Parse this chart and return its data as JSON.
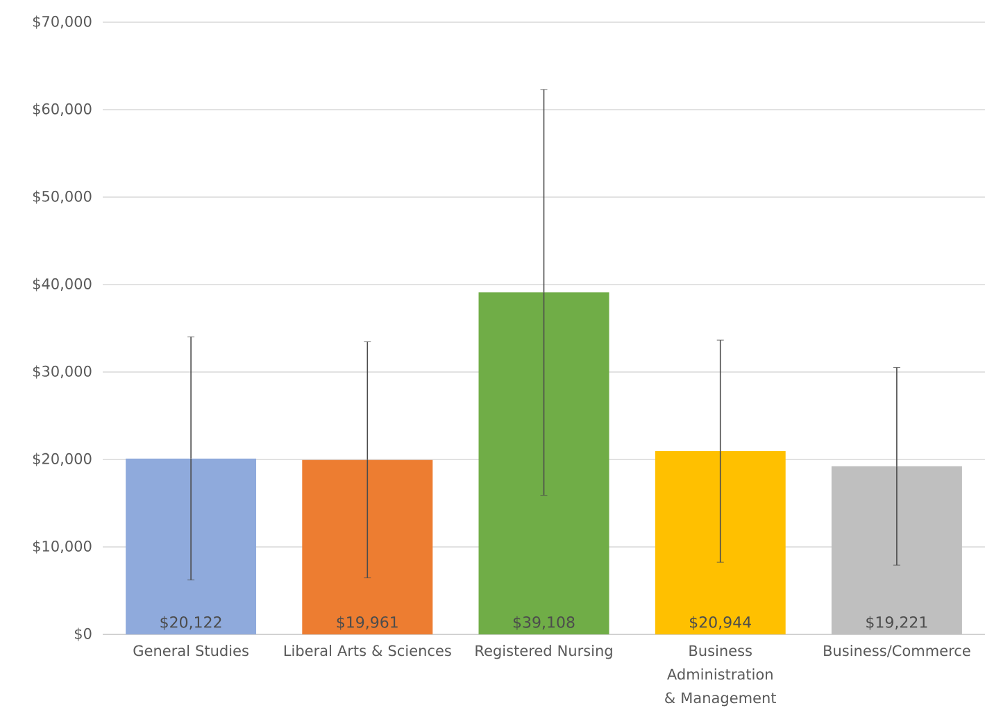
{
  "chart_data": {
    "type": "bar",
    "categories": [
      "General Studies",
      "Liberal Arts & Sciences",
      "Registered Nursing",
      "Business Administration & Management",
      "Business/Commerce"
    ],
    "values": [
      20122,
      19961,
      39108,
      20944,
      19221
    ],
    "errors": [
      13900,
      13500,
      23200,
      12700,
      11300
    ],
    "value_labels": [
      "$20,122",
      "$19,961",
      "$39,108",
      "$20,944",
      "$19,221"
    ],
    "colors": [
      "#8faadc",
      "#ed7d31",
      "#70ad47",
      "#ffc000",
      "#bfbfbf"
    ],
    "ylim": [
      0,
      70000
    ],
    "yticks": [
      {
        "value": 0,
        "label": "$0"
      },
      {
        "value": 10000,
        "label": "$10,000"
      },
      {
        "value": 20000,
        "label": "$20,000"
      },
      {
        "value": 30000,
        "label": "$30,000"
      },
      {
        "value": 40000,
        "label": "$40,000"
      },
      {
        "value": 50000,
        "label": "$50,000"
      },
      {
        "value": 60000,
        "label": "$60,000"
      },
      {
        "value": 70000,
        "label": "$70,000"
      }
    ],
    "grid": "y"
  }
}
